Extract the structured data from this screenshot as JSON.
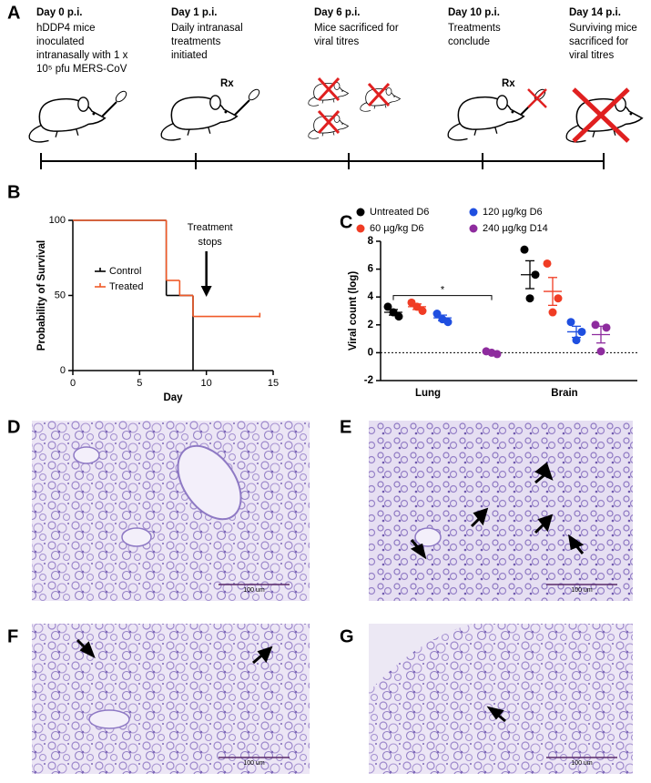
{
  "panel_labels": [
    "A",
    "B",
    "C",
    "D",
    "E",
    "F",
    "G"
  ],
  "timeline": {
    "steps": [
      {
        "title": "Day 0 p.i.",
        "lines": [
          "hDDP4 mice",
          "inoculated",
          "intranasally with 1 x",
          "10⁵ pfu MERS-CoV"
        ]
      },
      {
        "title": "Day 1 p.i.",
        "lines": [
          "Daily intranasal",
          "treatments",
          "initiated"
        ]
      },
      {
        "title": "Day 6 p.i.",
        "lines": [
          "Mice sacrificed for",
          "viral titres"
        ]
      },
      {
        "title": "Day 10 p.i.",
        "lines": [
          "Treatments",
          "conclude"
        ]
      },
      {
        "title": "Day 14 p.i.",
        "lines": [
          "Surviving mice",
          "sacrificed for",
          "viral titres"
        ]
      }
    ],
    "rx_label": "Rx"
  },
  "chart_data": [
    {
      "type": "step",
      "y_label": "Probability of Survival",
      "x_label": "Day",
      "x": [
        0,
        7,
        8,
        9,
        14
      ],
      "series": [
        {
          "name": "Control",
          "color": "#000000",
          "values": [
            100,
            50,
            50,
            0,
            null
          ]
        },
        {
          "name": "Treated",
          "color": "#f05a28",
          "values": [
            100,
            60,
            50,
            36,
            36
          ]
        }
      ],
      "xlim": [
        0,
        15
      ],
      "ylim": [
        0,
        100
      ],
      "xticks": [
        0,
        5,
        10,
        15
      ],
      "yticks": [
        0,
        50,
        100
      ],
      "annotation": {
        "lines": [
          "Treatment",
          "stops"
        ],
        "x": 10
      },
      "legend": "upper-left"
    },
    {
      "type": "dot",
      "y_label": "Viral count (log)",
      "categories": [
        "Lung",
        "Brain"
      ],
      "series": [
        {
          "name": "Untreated D6",
          "color": "#000000",
          "values": [
            [
              3.3,
              2.6,
              2.9
            ],
            [
              7.4,
              5.6,
              3.9
            ]
          ],
          "means": [
            2.9,
            5.6
          ],
          "errors": [
            0.2,
            1.0
          ]
        },
        {
          "name": "60 µg/kg D6",
          "color": "#f03c24",
          "values": [
            [
              3.6,
              3.0,
              3.3
            ],
            [
              6.4,
              3.9,
              2.9
            ]
          ],
          "means": [
            3.3,
            4.4
          ],
          "errors": [
            0.2,
            1.0
          ]
        },
        {
          "name": "120 µg/kg D6",
          "color": "#1f4fe0",
          "values": [
            [
              2.8,
              2.2,
              2.4
            ],
            [
              2.2,
              1.5,
              0.9
            ]
          ],
          "means": [
            2.5,
            1.5
          ],
          "errors": [
            0.2,
            0.4
          ]
        },
        {
          "name": "240 µg/kg D14",
          "color": "#8e2c9e",
          "values": [
            [
              0.1,
              -0.1,
              0.0
            ],
            [
              2.0,
              1.8,
              0.1
            ]
          ],
          "means": [
            0.0,
            1.3
          ],
          "errors": [
            0.1,
            0.6
          ]
        }
      ],
      "ylim": [
        -2,
        8
      ],
      "yticks": [
        -2,
        0,
        2,
        4,
        6,
        8
      ],
      "reference_line": 0,
      "significance": {
        "label": "*",
        "y": 4.1
      },
      "legend": "top"
    }
  ],
  "micrographs": {
    "scale_bar_label": "100 um"
  }
}
